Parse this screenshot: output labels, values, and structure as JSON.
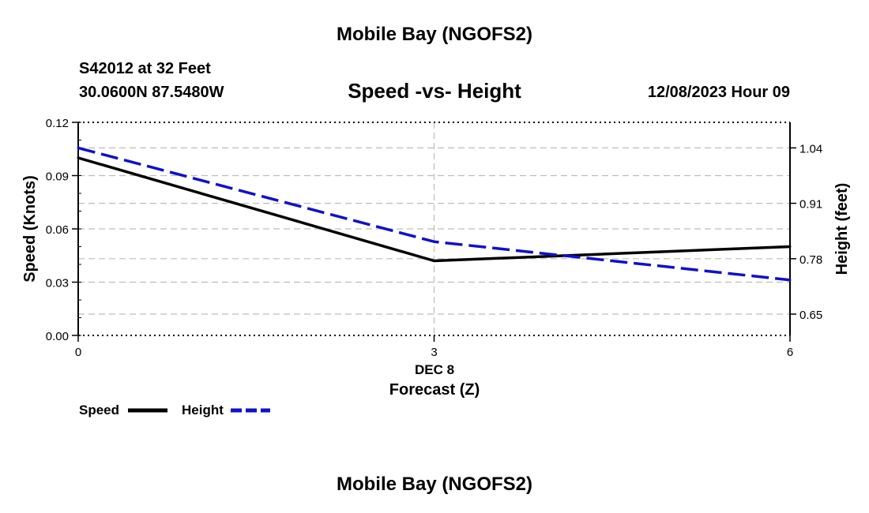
{
  "header": {
    "top_title": "Mobile Bay (NGOFS2)",
    "station_line": "S42012 at 32 Feet",
    "coords_line": "30.0600N  87.5480W",
    "date_line": "12/08/2023 Hour 09",
    "bottom_title": "Mobile Bay (NGOFS2)"
  },
  "chart_data": {
    "type": "line",
    "title": "Speed -vs- Height",
    "xlabel": "Forecast (Z)",
    "x_date_label": "DEC 8",
    "ylabel_left": "Speed (Knots)",
    "ylabel_right": "Height (feet)",
    "x": [
      0,
      3,
      6
    ],
    "x_ticks": [
      0,
      3,
      6
    ],
    "x_tick_labels": [
      "0",
      "3",
      "6"
    ],
    "xlim": [
      0,
      6
    ],
    "ylim_left": [
      0,
      0.12
    ],
    "left_ticks": [
      0,
      0.03,
      0.06,
      0.09,
      0.12
    ],
    "left_tick_labels": [
      "0.00",
      "0.03",
      "0.06",
      "0.09",
      "0.12"
    ],
    "ylim_right": [
      0.6,
      1.1
    ],
    "right_ticks": [
      0.65,
      0.78,
      0.91,
      1.04
    ],
    "right_tick_labels": [
      "0.65",
      "0.78",
      "0.91",
      "1.04"
    ],
    "grid": true,
    "legend_position": "bottom-left",
    "series": [
      {
        "name": "Speed",
        "axis": "left",
        "values": [
          0.1,
          0.042,
          0.05
        ],
        "color": "#000000",
        "dash": "solid"
      },
      {
        "name": "Height",
        "axis": "right",
        "values": [
          1.04,
          0.82,
          0.73
        ],
        "color": "#1010cc",
        "dash": "dashed"
      }
    ]
  }
}
